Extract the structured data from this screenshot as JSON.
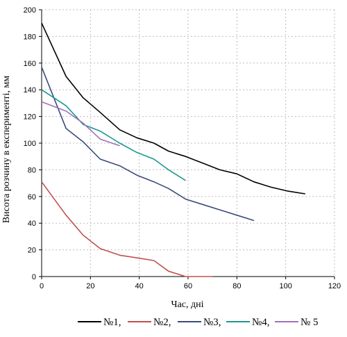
{
  "chart_data": {
    "type": "line",
    "xlabel": "Час, дні",
    "ylabel": "Висота розчину в експерименті, мм",
    "xlim": [
      0,
      120
    ],
    "ylim": [
      0,
      200
    ],
    "xticks": [
      0,
      20,
      40,
      60,
      80,
      100,
      120
    ],
    "yticks": [
      0,
      20,
      40,
      60,
      80,
      100,
      120,
      140,
      160,
      180,
      200
    ],
    "grid": true,
    "legend_position": "bottom",
    "series": [
      {
        "name": "№1,",
        "color": "#000000",
        "x": [
          0,
          10,
          17,
          24,
          32,
          39,
          46,
          52,
          59,
          66,
          73,
          80,
          87,
          94,
          101,
          108
        ],
        "y": [
          190,
          150,
          134,
          123,
          110,
          104,
          100,
          94,
          90,
          85,
          80,
          77,
          71,
          67,
          64,
          62
        ]
      },
      {
        "name": "№2,",
        "color": "#c0504d",
        "x": [
          0,
          10,
          17,
          24,
          32,
          39,
          46,
          52,
          59,
          66,
          70
        ],
        "y": [
          71,
          46,
          31,
          21,
          16,
          14,
          12,
          4,
          0,
          0,
          0
        ]
      },
      {
        "name": "№3,",
        "color": "#3b4a7e",
        "x": [
          0,
          10,
          17,
          24,
          32,
          39,
          46,
          52,
          59,
          66,
          73,
          80,
          87
        ],
        "y": [
          157,
          111,
          101,
          88,
          83,
          76,
          71,
          66,
          58,
          54,
          50,
          46,
          42
        ]
      },
      {
        "name": "№4,",
        "color": "#1a9990",
        "x": [
          0,
          10,
          17,
          24,
          32,
          39,
          46,
          52,
          59
        ],
        "y": [
          140,
          128,
          114,
          109,
          100,
          93,
          88,
          80,
          72
        ]
      },
      {
        "name": "№ 5",
        "color": "#a070b8",
        "x": [
          0,
          10,
          17,
          24,
          32
        ],
        "y": [
          131,
          124,
          115,
          103,
          98
        ]
      }
    ]
  }
}
